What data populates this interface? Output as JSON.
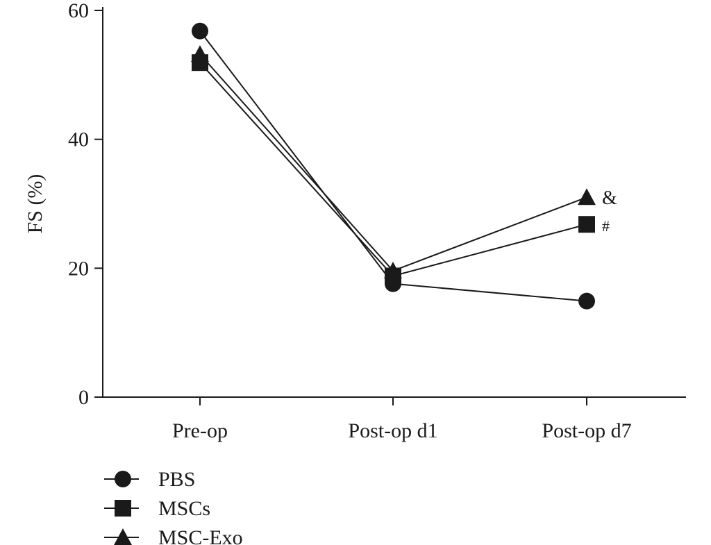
{
  "chart_data": {
    "type": "line",
    "title": "",
    "xlabel": "",
    "ylabel": "FS (%)",
    "categories": [
      "Pre-op",
      "Post-op d1",
      "Post-op d7"
    ],
    "ylim": [
      0,
      60
    ],
    "yticks": [
      0,
      20,
      40,
      60
    ],
    "grid": false,
    "legend_position": "bottom-left",
    "series": [
      {
        "name": "PBS",
        "marker": "circle",
        "values": [
          56.8,
          17.6,
          14.9
        ]
      },
      {
        "name": "MSCs",
        "marker": "square",
        "values": [
          51.9,
          18.8,
          26.8
        ]
      },
      {
        "name": "MSC-Exo",
        "marker": "triangle",
        "values": [
          53.2,
          19.6,
          31.0
        ]
      }
    ],
    "annotations": [
      {
        "text": "&",
        "series": "MSC-Exo",
        "category": "Post-op d7"
      },
      {
        "text": "#",
        "series": "MSCs",
        "category": "Post-op d7"
      }
    ]
  },
  "colors": {
    "ink": "#1a1a1a",
    "background": "#ffffff"
  }
}
